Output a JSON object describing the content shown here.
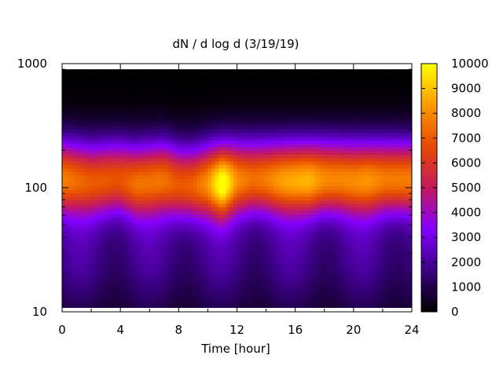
{
  "chart_data": {
    "type": "heatmap",
    "title": "dN / d log d (3/19/19)",
    "xlabel": "Time [hour]",
    "ylabel": "",
    "xlim": [
      0,
      24
    ],
    "ylim": [
      10,
      1000
    ],
    "y_scale": "log",
    "x_ticks": [
      "0",
      "4",
      "8",
      "12",
      "16",
      "20",
      "24"
    ],
    "y_ticks": [
      "10",
      "100",
      "1000"
    ],
    "colorbar": {
      "range": [
        0,
        10000
      ],
      "ticks": [
        "0",
        "1000",
        "2000",
        "3000",
        "4000",
        "5000",
        "6000",
        "7000",
        "8000",
        "9000",
        "10000"
      ],
      "colormap": [
        "#000000",
        "#3a0082",
        "#8400ff",
        "#c41a5f",
        "#e64a00",
        "#ff9a00",
        "#ffff00"
      ]
    },
    "grid": false,
    "legend": "colorbar-right",
    "x": [
      0,
      1,
      2,
      3,
      4,
      5,
      6,
      7,
      8,
      9,
      10,
      11,
      12,
      13,
      14,
      15,
      16,
      17,
      18,
      19,
      20,
      21,
      22,
      23,
      24
    ],
    "mode_diameter": [
      120,
      118,
      115,
      118,
      120,
      112,
      115,
      118,
      110,
      108,
      112,
      110,
      118,
      120,
      120,
      118,
      118,
      118,
      120,
      120,
      118,
      118,
      120,
      120,
      120
    ],
    "peak_value": [
      7000,
      6300,
      6000,
      6300,
      6200,
      6500,
      6400,
      6600,
      6200,
      6400,
      7200,
      9500,
      7200,
      6800,
      7000,
      7400,
      7600,
      8000,
      7400,
      7200,
      7000,
      7200,
      7000,
      7100,
      7000
    ]
  }
}
